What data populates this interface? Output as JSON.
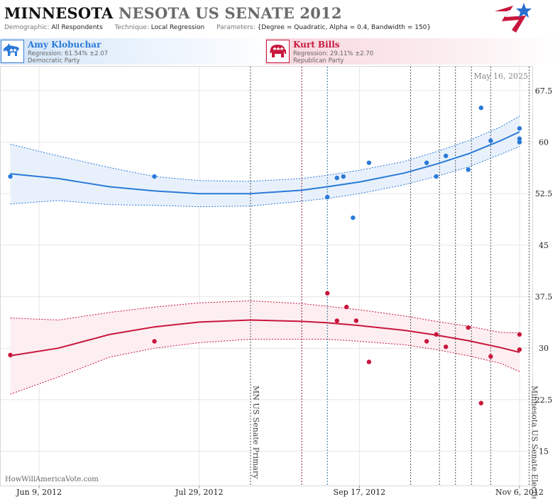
{
  "header": {
    "title_part1": "MINNESOTA",
    "title_part2": "NESOTA US SENATE 2012",
    "demographic_label": "Demographic:",
    "demographic_value": "All Respondents",
    "technique_label": "Technique:",
    "technique_value": "Local Regression",
    "parameters_label": "Parameters:",
    "parameters_value": "{Degree = Quadratic, Alpha = 0.4, Bandwidth = 150}"
  },
  "candidates": [
    {
      "name": "Amy Klobuchar",
      "regression": "Regression: 61.54% ±2.07",
      "party": "Democratic Party",
      "color": "#2a7ad8"
    },
    {
      "name": "Kurt Bills",
      "regression": "Regression: 29.11% ±2.70",
      "party": "Republican Party",
      "color": "#c8163c"
    }
  ],
  "chart_data": {
    "type": "scatter",
    "date_stamp": "May 16, 2025",
    "watermark": "HowWillAmericaVote.com",
    "x_range": [
      "2012-05-28",
      "2012-11-10"
    ],
    "x_ticks": [
      {
        "date": "2012-06-09",
        "label": "Jun 9, 2012"
      },
      {
        "date": "2012-07-29",
        "label": "Jul 29, 2012"
      },
      {
        "date": "2012-09-17",
        "label": "Sep 17, 2012"
      },
      {
        "date": "2012-11-06",
        "label": "Nov 6, 2012"
      }
    ],
    "y_range": [
      10,
      71
    ],
    "y_ticks": [
      15,
      22.5,
      30,
      37.5,
      45,
      52.5,
      60,
      67.5
    ],
    "events": [
      {
        "date": "2012-08-14",
        "label": "MN US Senate Primary",
        "color": "#555555"
      },
      {
        "date": "2012-08-30",
        "label": "",
        "color": "#8a1a3c"
      },
      {
        "date": "2012-09-07",
        "label": "",
        "color": "#2a6fa0"
      },
      {
        "date": "2012-10-03",
        "label": "",
        "color": "#555555"
      },
      {
        "date": "2012-10-12",
        "label": "",
        "color": "#555555"
      },
      {
        "date": "2012-10-17",
        "label": "",
        "color": "#555555"
      },
      {
        "date": "2012-10-22",
        "label": "",
        "color": "#555555"
      },
      {
        "date": "2012-10-28",
        "label": "",
        "color": "#555555"
      },
      {
        "date": "2012-11-09",
        "label": "Minnesota US Senate Election",
        "color": "#555555"
      }
    ],
    "series": [
      {
        "name": "Amy Klobuchar",
        "color": "#2a7ad8",
        "band_color": "#e8f1fb",
        "points": [
          [
            "2012-05-31",
            55
          ],
          [
            "2012-07-15",
            55
          ],
          [
            "2012-09-07",
            52
          ],
          [
            "2012-09-10",
            54.8
          ],
          [
            "2012-09-12",
            55
          ],
          [
            "2012-09-15",
            49
          ],
          [
            "2012-09-20",
            57
          ],
          [
            "2012-10-08",
            57
          ],
          [
            "2012-10-11",
            55
          ],
          [
            "2012-10-14",
            58
          ],
          [
            "2012-10-21",
            56
          ],
          [
            "2012-10-25",
            65
          ],
          [
            "2012-10-28",
            60.2
          ],
          [
            "2012-11-06",
            62
          ],
          [
            "2012-11-06",
            60.5
          ],
          [
            "2012-11-06",
            60
          ]
        ],
        "fit": [
          [
            "2012-05-31",
            55.4
          ],
          [
            "2012-06-15",
            54.7
          ],
          [
            "2012-07-01",
            53.5
          ],
          [
            "2012-07-15",
            52.9
          ],
          [
            "2012-07-29",
            52.5
          ],
          [
            "2012-08-14",
            52.5
          ],
          [
            "2012-08-30",
            53.0
          ],
          [
            "2012-09-07",
            53.5
          ],
          [
            "2012-09-17",
            54.2
          ],
          [
            "2012-10-01",
            55.5
          ],
          [
            "2012-10-11",
            56.8
          ],
          [
            "2012-10-21",
            58.3
          ],
          [
            "2012-10-31",
            60.2
          ],
          [
            "2012-11-06",
            61.5
          ]
        ],
        "band_upper": [
          [
            "2012-05-31",
            59.7
          ],
          [
            "2012-06-15",
            58.0
          ],
          [
            "2012-07-01",
            56.3
          ],
          [
            "2012-07-15",
            55.0
          ],
          [
            "2012-07-29",
            54.4
          ],
          [
            "2012-08-14",
            54.3
          ],
          [
            "2012-08-30",
            54.7
          ],
          [
            "2012-09-07",
            55.2
          ],
          [
            "2012-09-17",
            55.9
          ],
          [
            "2012-10-01",
            57.2
          ],
          [
            "2012-10-11",
            58.6
          ],
          [
            "2012-10-21",
            60.2
          ],
          [
            "2012-10-31",
            62.2
          ],
          [
            "2012-11-06",
            63.8
          ]
        ],
        "band_lower": [
          [
            "2012-05-31",
            51.0
          ],
          [
            "2012-06-15",
            51.5
          ],
          [
            "2012-07-01",
            50.9
          ],
          [
            "2012-07-15",
            50.8
          ],
          [
            "2012-07-29",
            50.6
          ],
          [
            "2012-08-14",
            50.7
          ],
          [
            "2012-08-30",
            51.4
          ],
          [
            "2012-09-07",
            51.8
          ],
          [
            "2012-09-17",
            52.5
          ],
          [
            "2012-10-01",
            53.8
          ],
          [
            "2012-10-11",
            55.0
          ],
          [
            "2012-10-21",
            56.4
          ],
          [
            "2012-10-31",
            58.2
          ],
          [
            "2012-11-06",
            59.4
          ]
        ]
      },
      {
        "name": "Kurt Bills",
        "color": "#c8163c",
        "band_color": "#fdeef1",
        "points": [
          [
            "2012-05-31",
            29
          ],
          [
            "2012-07-15",
            31
          ],
          [
            "2012-09-07",
            38
          ],
          [
            "2012-09-10",
            34
          ],
          [
            "2012-09-13",
            36
          ],
          [
            "2012-09-16",
            34
          ],
          [
            "2012-09-20",
            28
          ],
          [
            "2012-10-08",
            31
          ],
          [
            "2012-10-11",
            32
          ],
          [
            "2012-10-14",
            30.2
          ],
          [
            "2012-10-21",
            33
          ],
          [
            "2012-10-25",
            22
          ],
          [
            "2012-10-28",
            28.8
          ],
          [
            "2012-11-06",
            32
          ],
          [
            "2012-11-06",
            29.8
          ]
        ],
        "fit": [
          [
            "2012-05-31",
            28.9
          ],
          [
            "2012-06-15",
            30.0
          ],
          [
            "2012-07-01",
            32.0
          ],
          [
            "2012-07-15",
            33.1
          ],
          [
            "2012-07-29",
            33.8
          ],
          [
            "2012-08-14",
            34.1
          ],
          [
            "2012-08-30",
            33.9
          ],
          [
            "2012-09-07",
            33.7
          ],
          [
            "2012-09-17",
            33.3
          ],
          [
            "2012-10-01",
            32.6
          ],
          [
            "2012-10-11",
            31.9
          ],
          [
            "2012-10-21",
            31.1
          ],
          [
            "2012-10-31",
            30.1
          ],
          [
            "2012-11-06",
            29.4
          ]
        ],
        "band_upper": [
          [
            "2012-05-31",
            34.4
          ],
          [
            "2012-06-15",
            34.1
          ],
          [
            "2012-07-01",
            35.2
          ],
          [
            "2012-07-15",
            36.0
          ],
          [
            "2012-07-29",
            36.6
          ],
          [
            "2012-08-14",
            36.9
          ],
          [
            "2012-08-30",
            36.5
          ],
          [
            "2012-09-07",
            36.1
          ],
          [
            "2012-09-17",
            35.6
          ],
          [
            "2012-10-01",
            34.7
          ],
          [
            "2012-10-11",
            33.9
          ],
          [
            "2012-10-21",
            33.2
          ],
          [
            "2012-10-31",
            32.3
          ],
          [
            "2012-11-06",
            32.2
          ]
        ],
        "band_lower": [
          [
            "2012-05-31",
            23.3
          ],
          [
            "2012-06-15",
            25.8
          ],
          [
            "2012-07-01",
            28.7
          ],
          [
            "2012-07-15",
            30.0
          ],
          [
            "2012-07-29",
            30.8
          ],
          [
            "2012-08-14",
            31.3
          ],
          [
            "2012-08-30",
            31.3
          ],
          [
            "2012-09-07",
            31.3
          ],
          [
            "2012-09-17",
            31.0
          ],
          [
            "2012-10-01",
            30.5
          ],
          [
            "2012-10-11",
            29.8
          ],
          [
            "2012-10-21",
            28.9
          ],
          [
            "2012-10-31",
            27.8
          ],
          [
            "2012-11-06",
            26.6
          ]
        ]
      }
    ]
  }
}
